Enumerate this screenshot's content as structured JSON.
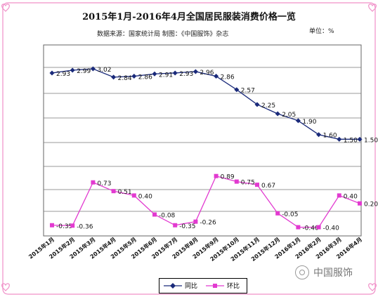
{
  "title": "2015年1月-2016年4月全国居民服装消费价格一览",
  "subtitle": "数据来源：国家统计局   制图：《中国服饰》杂志",
  "unit": "单位：%",
  "watermark": "中国服饰",
  "chart_data": {
    "type": "line",
    "categories": [
      "2015年1月",
      "2015年2月",
      "2015年3月",
      "2015年4月",
      "2015年5月",
      "2015年6月",
      "2015年7月",
      "2015年8月",
      "2015年9月",
      "2015年10月",
      "2015年11月",
      "2015年12月",
      "2016年1月",
      "2016年2月",
      "2016年3月",
      "2016年4月"
    ],
    "series": [
      {
        "name": "同比",
        "color": "#1a2a7a",
        "marker": "diamond",
        "values": [
          2.93,
          2.99,
          3.02,
          2.84,
          2.86,
          2.91,
          2.93,
          2.96,
          2.86,
          2.57,
          2.25,
          2.05,
          1.9,
          1.6,
          1.5,
          1.5
        ],
        "labels": [
          "2.93",
          "2.99",
          "3.02",
          "2.84",
          "2.86",
          "2.91",
          "2.93",
          "2.96",
          "2.86",
          "2.57",
          "2.25",
          "2.05",
          "1.90",
          "1.60",
          "1.50",
          "1.50"
        ]
      },
      {
        "name": "环比",
        "color": "#e23ad0",
        "marker": "square",
        "values": [
          -0.35,
          -0.36,
          0.73,
          0.51,
          0.4,
          -0.08,
          -0.35,
          -0.26,
          0.89,
          0.75,
          0.67,
          -0.05,
          -0.4,
          -0.4,
          0.4,
          0.2
        ],
        "labels": [
          "-0.35",
          "-0.36",
          "0.73",
          "0.51",
          "0.40",
          "-0.08",
          "-0.35",
          "-0.26",
          "0.89",
          "0.75",
          "0.67",
          "-0.05",
          "-0.40",
          "-0.40",
          "0.40",
          "0.20"
        ]
      }
    ],
    "legend": "bottom",
    "grid": true
  }
}
